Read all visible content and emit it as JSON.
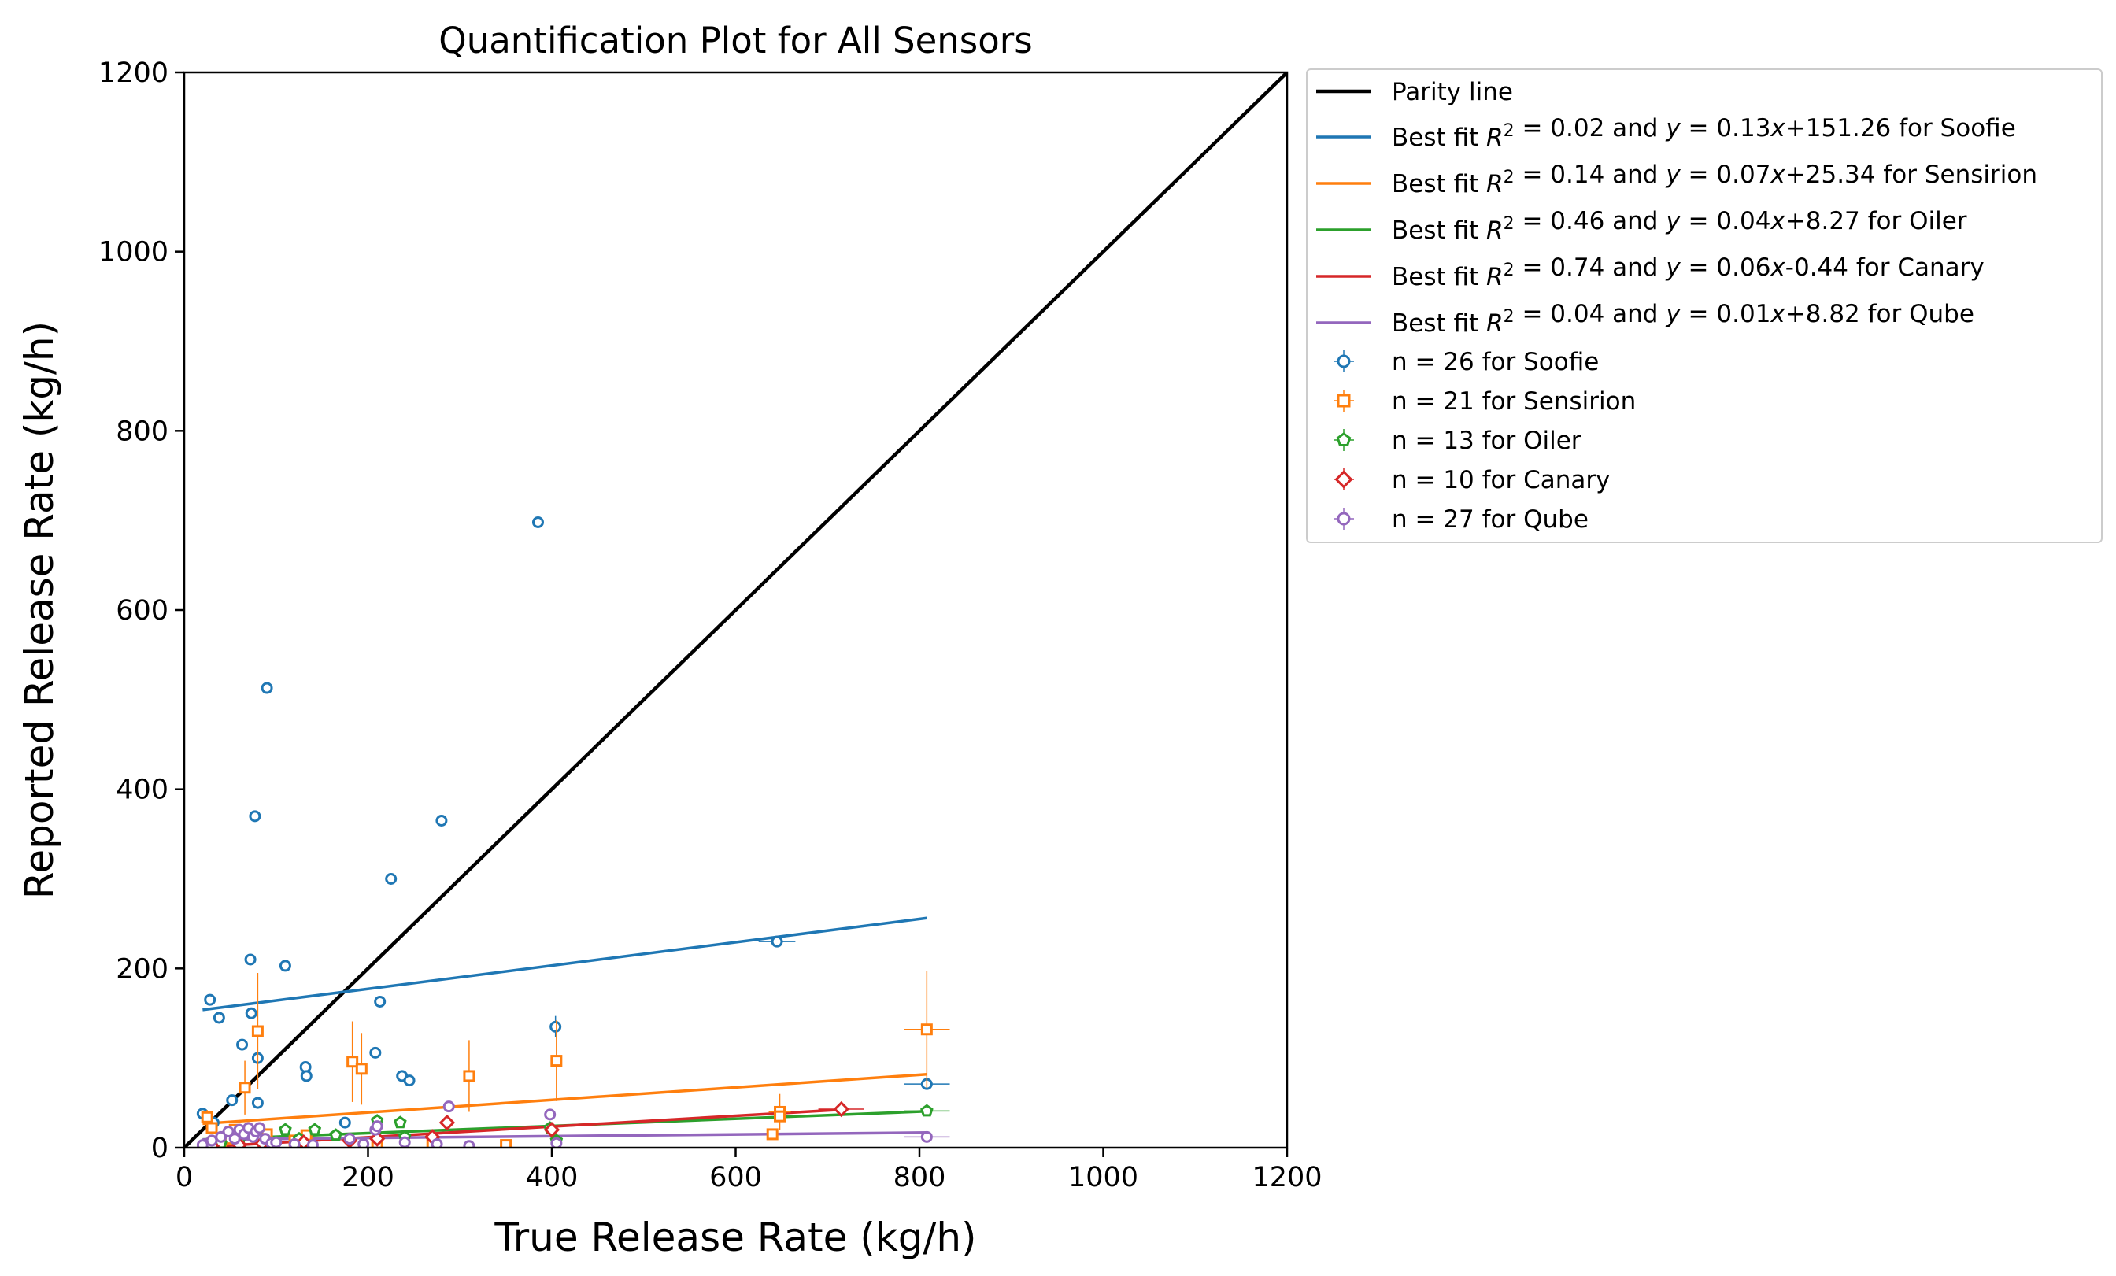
{
  "chart_data": {
    "type": "scatter",
    "title": "Quantification Plot for All Sensors",
    "xlabel": "True Release Rate (kg/h)",
    "ylabel": "Reported Release Rate (kg/h)",
    "xlim": [
      0,
      1200
    ],
    "ylim": [
      0,
      1200
    ],
    "xticks": [
      "0",
      "200",
      "400",
      "600",
      "800",
      "1000",
      "1200"
    ],
    "yticks": [
      "0",
      "200",
      "400",
      "600",
      "800",
      "1000",
      "1200"
    ],
    "grid": false,
    "legend_position": "outside-top-right",
    "parity_line": {
      "label": "Parity line",
      "color": "#000000",
      "from": [
        0,
        0
      ],
      "to": [
        1200,
        1200
      ]
    },
    "series": [
      {
        "name": "Soofie",
        "color": "#1f77b4",
        "marker": "circle",
        "count_label": "n = 26 for Soofie",
        "fit": {
          "r2": "0.02",
          "eq": "0.13x+151.26",
          "slope": 0.13,
          "intercept": 151.26,
          "x_range": [
            20,
            808
          ]
        },
        "points": [
          [
            20,
            38,
            0,
            0
          ],
          [
            28,
            165,
            0,
            0
          ],
          [
            32,
            28,
            0,
            0
          ],
          [
            38,
            145,
            0,
            0
          ],
          [
            52,
            53,
            0,
            0
          ],
          [
            63,
            115,
            0,
            0
          ],
          [
            72,
            210,
            0,
            0
          ],
          [
            73,
            150,
            0,
            0
          ],
          [
            77,
            370,
            0,
            0
          ],
          [
            80,
            100,
            0,
            0
          ],
          [
            80,
            50,
            0,
            0
          ],
          [
            90,
            513,
            0,
            0
          ],
          [
            110,
            203,
            0,
            0
          ],
          [
            132,
            90,
            0,
            0
          ],
          [
            133,
            80,
            0,
            0
          ],
          [
            175,
            28,
            0,
            0
          ],
          [
            208,
            106,
            0,
            0
          ],
          [
            213,
            163,
            0,
            0
          ],
          [
            225,
            300,
            0,
            0
          ],
          [
            237,
            80,
            0,
            0
          ],
          [
            245,
            75,
            0,
            0
          ],
          [
            280,
            365,
            0,
            0
          ],
          [
            385,
            698,
            0,
            0
          ],
          [
            404,
            135,
            0,
            12
          ],
          [
            645,
            230,
            20,
            0
          ],
          [
            808,
            71,
            25,
            0
          ]
        ]
      },
      {
        "name": "Sensirion",
        "color": "#ff7f0e",
        "marker": "square",
        "count_label": "n = 21 for Sensirion",
        "fit": {
          "r2": "0.14",
          "eq": "0.07x+25.34",
          "slope": 0.07,
          "intercept": 25.34,
          "x_range": [
            20,
            808
          ]
        },
        "points": [
          [
            25,
            34,
            0,
            8
          ],
          [
            40,
            5,
            0,
            0
          ],
          [
            55,
            20,
            0,
            0
          ],
          [
            66,
            67,
            0,
            30
          ],
          [
            80,
            130,
            0,
            65
          ],
          [
            90,
            15,
            0,
            0
          ],
          [
            133,
            14,
            0,
            0
          ],
          [
            183,
            96,
            0,
            45
          ],
          [
            193,
            88,
            0,
            40
          ],
          [
            210,
            5,
            0,
            0
          ],
          [
            310,
            80,
            0,
            40
          ],
          [
            405,
            97,
            0,
            45
          ],
          [
            640,
            15,
            0,
            0
          ],
          [
            648,
            40,
            12,
            20
          ],
          [
            648,
            35,
            0,
            0
          ],
          [
            808,
            132,
            25,
            65
          ],
          [
            50,
            10,
            0,
            0
          ],
          [
            120,
            8,
            0,
            0
          ],
          [
            270,
            4,
            0,
            0
          ],
          [
            350,
            3,
            0,
            0
          ],
          [
            30,
            22,
            0,
            0
          ]
        ]
      },
      {
        "name": "Oiler",
        "color": "#2ca02c",
        "marker": "pentagon",
        "count_label": "n = 13 for Oiler",
        "fit": {
          "r2": "0.46",
          "eq": "0.04x+8.27",
          "slope": 0.04,
          "intercept": 8.27,
          "x_range": [
            20,
            808
          ]
        },
        "points": [
          [
            40,
            5,
            0,
            0
          ],
          [
            60,
            8,
            0,
            0
          ],
          [
            80,
            12,
            0,
            0
          ],
          [
            110,
            20,
            0,
            0
          ],
          [
            125,
            10,
            0,
            0
          ],
          [
            142,
            20,
            0,
            0
          ],
          [
            165,
            14,
            0,
            0
          ],
          [
            210,
            30,
            0,
            0
          ],
          [
            240,
            12,
            0,
            0
          ],
          [
            235,
            28,
            0,
            0
          ],
          [
            398,
            22,
            0,
            0
          ],
          [
            405,
            8,
            0,
            0
          ],
          [
            808,
            41,
            25,
            0
          ]
        ]
      },
      {
        "name": "Canary",
        "color": "#d62728",
        "marker": "diamond",
        "count_label": "n = 10 for Canary",
        "fit": {
          "r2": "0.74",
          "eq": "0.06x-0.44",
          "slope": 0.06,
          "intercept": -0.44,
          "x_range": [
            20,
            712
          ]
        },
        "points": [
          [
            30,
            2,
            0,
            0
          ],
          [
            60,
            3,
            0,
            0
          ],
          [
            85,
            5,
            0,
            0
          ],
          [
            130,
            6,
            0,
            0
          ],
          [
            180,
            8,
            0,
            0
          ],
          [
            210,
            10,
            0,
            0
          ],
          [
            270,
            12,
            0,
            0
          ],
          [
            286,
            28,
            0,
            0
          ],
          [
            400,
            20,
            0,
            0
          ],
          [
            715,
            43,
            25,
            0
          ]
        ]
      },
      {
        "name": "Qube",
        "color": "#9467bd",
        "marker": "circle",
        "count_label": "n = 27 for Qube",
        "fit": {
          "r2": "0.04",
          "eq": "0.01x+8.82",
          "slope": 0.01,
          "intercept": 8.82,
          "x_range": [
            20,
            808
          ]
        },
        "points": [
          [
            20,
            3,
            0,
            0
          ],
          [
            30,
            8,
            0,
            0
          ],
          [
            40,
            12,
            0,
            0
          ],
          [
            48,
            18,
            0,
            0
          ],
          [
            55,
            10,
            0,
            0
          ],
          [
            60,
            20,
            0,
            0
          ],
          [
            65,
            15,
            0,
            0
          ],
          [
            70,
            22,
            0,
            0
          ],
          [
            75,
            12,
            0,
            0
          ],
          [
            78,
            18,
            0,
            0
          ],
          [
            82,
            22,
            0,
            0
          ],
          [
            88,
            10,
            0,
            0
          ],
          [
            95,
            5,
            0,
            0
          ],
          [
            100,
            6,
            0,
            0
          ],
          [
            120,
            4,
            0,
            0
          ],
          [
            140,
            3,
            0,
            0
          ],
          [
            180,
            10,
            0,
            0
          ],
          [
            195,
            4,
            0,
            0
          ],
          [
            208,
            20,
            0,
            0
          ],
          [
            210,
            24,
            0,
            0
          ],
          [
            240,
            6,
            0,
            0
          ],
          [
            275,
            4,
            0,
            0
          ],
          [
            288,
            46,
            0,
            0
          ],
          [
            310,
            2,
            0,
            0
          ],
          [
            398,
            37,
            0,
            0
          ],
          [
            405,
            5,
            0,
            0
          ],
          [
            808,
            12,
            25,
            0
          ]
        ]
      }
    ]
  }
}
